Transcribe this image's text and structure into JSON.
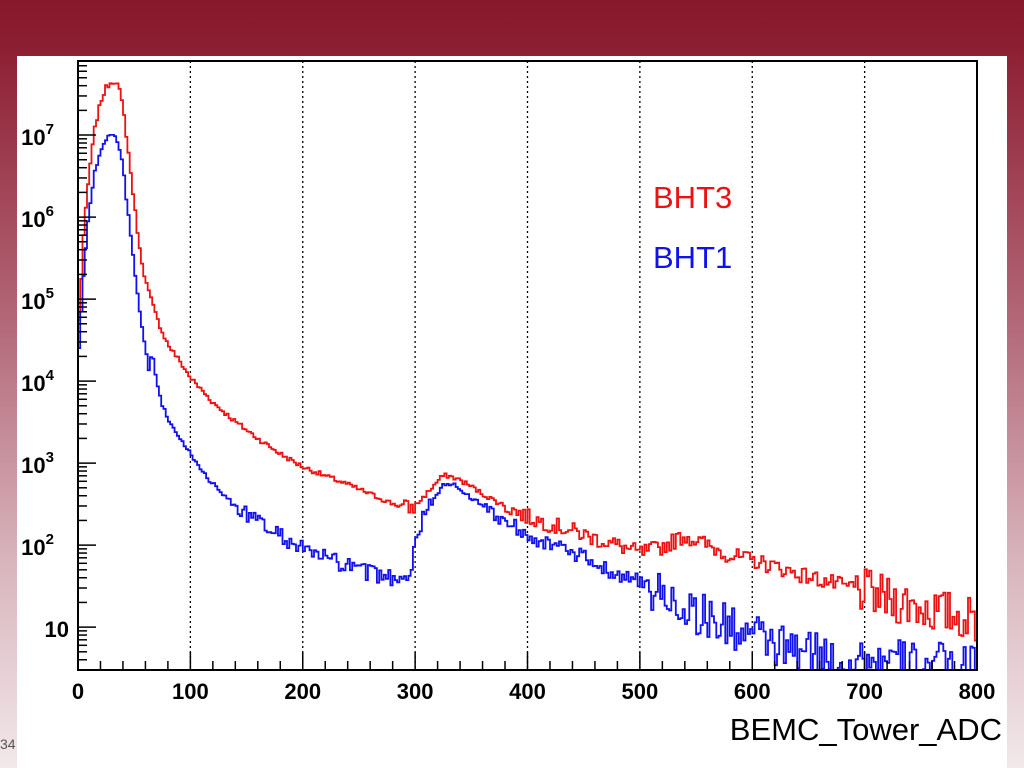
{
  "slide": {
    "number": "34"
  },
  "chart_data": {
    "type": "line",
    "title": "",
    "xlabel": "BEMC_Tower_ADC",
    "ylabel": "",
    "xlim": [
      0,
      800
    ],
    "ylim": [
      3,
      80000000
    ],
    "yscale": "log",
    "grid": "vertical dotted at major x ticks",
    "legend": "top-right text labels",
    "x_ticks": [
      0,
      100,
      200,
      300,
      400,
      500,
      600,
      700,
      800
    ],
    "y_ticks": [
      {
        "value": 10,
        "base": "10",
        "exp": ""
      },
      {
        "value": 100,
        "base": "10",
        "exp": "2"
      },
      {
        "value": 1000,
        "base": "10",
        "exp": "3"
      },
      {
        "value": 10000,
        "base": "10",
        "exp": "4"
      },
      {
        "value": 100000,
        "base": "10",
        "exp": "5"
      },
      {
        "value": 1000000,
        "base": "10",
        "exp": "6"
      },
      {
        "value": 10000000,
        "base": "10",
        "exp": "7"
      }
    ],
    "series": [
      {
        "name": "BHT3",
        "color": "#ee1111",
        "x": [
          0,
          5,
          10,
          15,
          20,
          25,
          30,
          33,
          36,
          40,
          45,
          50,
          55,
          60,
          65,
          70,
          75,
          80,
          90,
          100,
          120,
          140,
          160,
          180,
          200,
          220,
          240,
          260,
          280,
          295,
          300,
          310,
          320,
          325,
          330,
          340,
          350,
          360,
          380,
          400,
          420,
          440,
          460,
          480,
          500,
          520,
          540,
          560,
          580,
          600,
          620,
          640,
          660,
          680,
          700,
          720,
          740,
          760,
          780,
          800
        ],
        "y": [
          30000,
          600000,
          3500000,
          12000000,
          25000000,
          38000000,
          45000000,
          45000000,
          40000000,
          22000000,
          6000000,
          1500000,
          400000,
          170000,
          100000,
          60000,
          40000,
          28000,
          18000,
          11000,
          5500,
          3200,
          2000,
          1300,
          900,
          700,
          550,
          420,
          320,
          280,
          300,
          420,
          600,
          700,
          700,
          620,
          520,
          420,
          300,
          220,
          180,
          150,
          120,
          100,
          80,
          95,
          130,
          100,
          75,
          65,
          55,
          45,
          38,
          32,
          27,
          22,
          19,
          16,
          14,
          12
        ]
      },
      {
        "name": "BHT1",
        "color": "#1111ee",
        "x": [
          0,
          5,
          10,
          15,
          20,
          25,
          30,
          33,
          36,
          40,
          45,
          50,
          55,
          60,
          63,
          66,
          70,
          75,
          80,
          90,
          100,
          120,
          140,
          160,
          180,
          200,
          220,
          240,
          260,
          280,
          295,
          300,
          305,
          310,
          320,
          325,
          330,
          340,
          350,
          360,
          380,
          400,
          420,
          440,
          460,
          480,
          500,
          520,
          540,
          560,
          580,
          600,
          620,
          640,
          660,
          680,
          700,
          720,
          740,
          760,
          780,
          800
        ],
        "y": [
          15000,
          200000,
          1200000,
          3500000,
          6500000,
          9000000,
          10000000,
          9500000,
          8000000,
          4000000,
          1000000,
          250000,
          70000,
          24000,
          14000,
          22000,
          9000,
          5200,
          3500,
          2000,
          1300,
          550,
          300,
          190,
          130,
          90,
          70,
          55,
          45,
          40,
          45,
          100,
          180,
          250,
          420,
          550,
          580,
          480,
          380,
          300,
          200,
          140,
          100,
          80,
          60,
          45,
          35,
          25,
          18,
          13,
          10,
          8,
          6,
          5,
          4.5,
          4,
          4,
          3.8,
          3.6,
          3.5,
          3.4,
          3.3
        ]
      }
    ]
  }
}
